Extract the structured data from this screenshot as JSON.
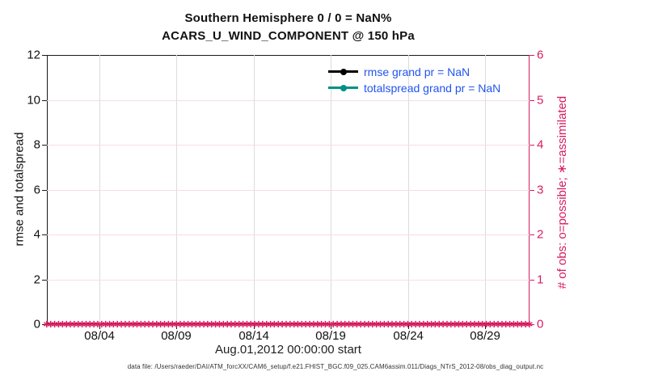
{
  "colors": {
    "crimson": "#d81b60",
    "teal": "#009085",
    "legend_text_blue": "#2154f0",
    "grid_pink": "#f6dce8",
    "grid_gray": "#dcdcdc",
    "axis_black": "#1a1a1a"
  },
  "titles": {
    "line1": "Southern Hemisphere 0 / 0 = NaN%",
    "line2": "ACARS_U_WIND_COMPONENT @ 150 hPa"
  },
  "chart_data": {
    "type": "line",
    "title": "Southern Hemisphere 0 / 0 = NaN%",
    "subtitle": "ACARS_U_WIND_COMPONENT @ 150 hPa",
    "xlabel": "Aug.01,2012 00:00:00 start",
    "ylabel_left": "rmse and totalspread",
    "ylabel_right": "# of obs: o=possible; ∗=assimilated",
    "grid": true,
    "legend_position": "top-right-inside",
    "x_ticks": [
      {
        "label": "08/04",
        "pct": 10.9
      },
      {
        "label": "08/09",
        "pct": 26.8
      },
      {
        "label": "08/14",
        "pct": 42.9
      },
      {
        "label": "08/19",
        "pct": 58.8
      },
      {
        "label": "08/24",
        "pct": 74.9
      },
      {
        "label": "08/29",
        "pct": 90.8
      }
    ],
    "ylim_left": [
      0,
      12
    ],
    "yticks_left": [
      0,
      2,
      4,
      6,
      8,
      10,
      12
    ],
    "ylim_right": [
      0,
      6
    ],
    "yticks_right": [
      0,
      1,
      2,
      3,
      4,
      5,
      6
    ],
    "series": [
      {
        "name": "rmse grand pr = NaN",
        "color": "#000000",
        "marker": "circle",
        "values": "NaN (nothing plotted)"
      },
      {
        "name": "totalspread grand pr = NaN",
        "color": "#009085",
        "marker": "circle",
        "values": "NaN (nothing plotted)"
      },
      {
        "name": "# of obs possible (o) and assimilated (∗)",
        "color": "#d81b60",
        "marker": "∗",
        "y_value": 0,
        "marker_count": 124,
        "note": "all observation counts are 0, dense marker band along right-axis zero line"
      }
    ]
  },
  "legend": {
    "text_color": "#2154f0",
    "entries": [
      {
        "label": "rmse grand pr = NaN",
        "color": "#000000"
      },
      {
        "label": "totalspread grand pr = NaN",
        "color": "#009085"
      }
    ]
  },
  "footer": {
    "data_file": "data file: /Users/raeder/DAI/ATM_forcXX/CAM6_setup/f.e21.FHIST_BGC.f09_025.CAM6assim.011/Diags_NTrS_2012-08/obs_diag_output.nc"
  }
}
